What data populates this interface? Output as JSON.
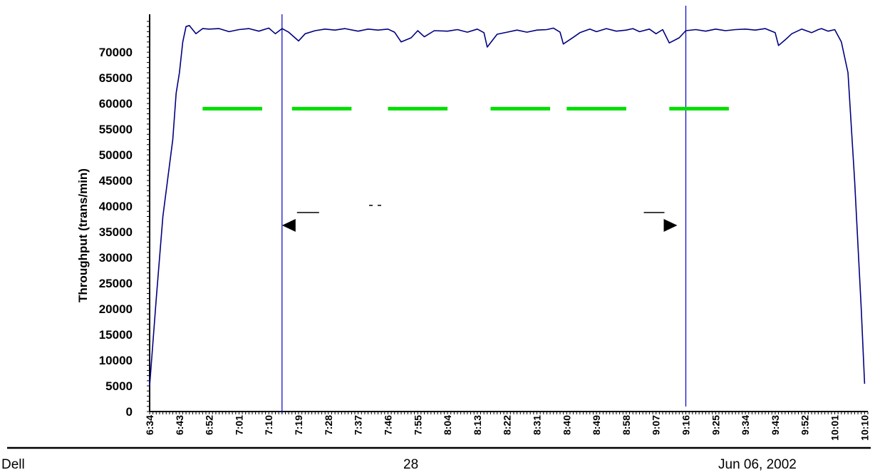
{
  "chart_data": {
    "type": "line",
    "ylabel": "Throughput (trans/min)",
    "xlabel": "",
    "ylim": [
      0,
      76000
    ],
    "yticks": [
      0,
      5000,
      10000,
      15000,
      20000,
      25000,
      30000,
      35000,
      40000,
      45000,
      50000,
      55000,
      60000,
      65000,
      70000
    ],
    "xrange": [
      "6:34",
      "10:11"
    ],
    "xticks": [
      "6:34",
      "6:43",
      "6:52",
      "7:01",
      "7:10",
      "7:19",
      "7:28",
      "7:37",
      "7:46",
      "7:55",
      "8:04",
      "8:13",
      "8:22",
      "8:31",
      "8:40",
      "8:49",
      "8:58",
      "9:07",
      "9:16",
      "9:25",
      "9:34",
      "9:43",
      "9:52",
      "10:01",
      "10:10"
    ],
    "grid": false,
    "legend": "none",
    "series": [
      {
        "color": "#000080",
        "points": [
          [
            "6:34",
            5000
          ],
          [
            "6:36",
            22000
          ],
          [
            "6:38",
            38000
          ],
          [
            "6:41",
            53000
          ],
          [
            "6:42",
            62000
          ],
          [
            "6:43",
            66000
          ],
          [
            "6:44",
            72000
          ],
          [
            "6:45",
            75000
          ],
          [
            "6:46",
            75200
          ],
          [
            "6:48",
            73600
          ],
          [
            "6:50",
            74600
          ],
          [
            "6:52",
            74500
          ],
          [
            "6:55",
            74600
          ],
          [
            "6:58",
            74000
          ],
          [
            "7:01",
            74400
          ],
          [
            "7:04",
            74600
          ],
          [
            "7:07",
            74100
          ],
          [
            "7:10",
            74700
          ],
          [
            "7:12",
            73600
          ],
          [
            "7:14",
            74600
          ],
          [
            "7:16",
            73900
          ],
          [
            "7:19",
            72200
          ],
          [
            "7:21",
            73600
          ],
          [
            "7:24",
            74200
          ],
          [
            "7:27",
            74500
          ],
          [
            "7:30",
            74300
          ],
          [
            "7:33",
            74600
          ],
          [
            "7:37",
            74100
          ],
          [
            "7:40",
            74500
          ],
          [
            "7:43",
            74300
          ],
          [
            "7:46",
            74500
          ],
          [
            "7:48",
            73900
          ],
          [
            "7:50",
            72000
          ],
          [
            "7:53",
            72800
          ],
          [
            "7:55",
            74200
          ],
          [
            "7:57",
            73000
          ],
          [
            "8:00",
            74200
          ],
          [
            "8:04",
            74100
          ],
          [
            "8:07",
            74400
          ],
          [
            "8:10",
            73900
          ],
          [
            "8:13",
            74500
          ],
          [
            "8:15",
            73800
          ],
          [
            "8:16",
            71000
          ],
          [
            "8:19",
            73500
          ],
          [
            "8:22",
            73900
          ],
          [
            "8:25",
            74300
          ],
          [
            "8:28",
            73900
          ],
          [
            "8:31",
            74300
          ],
          [
            "8:34",
            74400
          ],
          [
            "8:36",
            74700
          ],
          [
            "8:38",
            73900
          ],
          [
            "8:39",
            71600
          ],
          [
            "8:42",
            72900
          ],
          [
            "8:44",
            73800
          ],
          [
            "8:47",
            74500
          ],
          [
            "8:49",
            74000
          ],
          [
            "8:52",
            74600
          ],
          [
            "8:55",
            74100
          ],
          [
            "8:58",
            74300
          ],
          [
            "9:00",
            74600
          ],
          [
            "9:02",
            74000
          ],
          [
            "9:05",
            74500
          ],
          [
            "9:07",
            73600
          ],
          [
            "9:09",
            74400
          ],
          [
            "9:11",
            71800
          ],
          [
            "9:14",
            72800
          ],
          [
            "9:16",
            74200
          ],
          [
            "9:19",
            74400
          ],
          [
            "9:22",
            74100
          ],
          [
            "9:25",
            74500
          ],
          [
            "9:28",
            74200
          ],
          [
            "9:31",
            74400
          ],
          [
            "9:34",
            74500
          ],
          [
            "9:37",
            74300
          ],
          [
            "9:40",
            74600
          ],
          [
            "9:43",
            73800
          ],
          [
            "9:44",
            71300
          ],
          [
            "9:46",
            72400
          ],
          [
            "9:48",
            73600
          ],
          [
            "9:51",
            74500
          ],
          [
            "9:54",
            73800
          ],
          [
            "9:56",
            74400
          ],
          [
            "9:57",
            74600
          ],
          [
            "9:59",
            74100
          ],
          [
            "10:01",
            74400
          ],
          [
            "10:03",
            72000
          ],
          [
            "10:05",
            66000
          ],
          [
            "10:07",
            45000
          ],
          [
            "10:09",
            20000
          ],
          [
            "10:10",
            5400
          ]
        ]
      }
    ],
    "segments": [
      {
        "color": "#00e000",
        "start": "6:50",
        "end": "7:08",
        "y": 59000
      },
      {
        "color": "#00e000",
        "start": "7:17",
        "end": "7:35",
        "y": 59000
      },
      {
        "color": "#00e000",
        "start": "7:46",
        "end": "8:04",
        "y": 59000
      },
      {
        "color": "#00e000",
        "start": "8:17",
        "end": "8:35",
        "y": 59000
      },
      {
        "color": "#00e000",
        "start": "8:40",
        "end": "8:58",
        "y": 59000
      },
      {
        "color": "#00e000",
        "start": "9:11",
        "end": "9:29",
        "y": 59000
      }
    ],
    "measurement_interval": {
      "start": "7:14",
      "end": "9:16",
      "color": "#0000c0"
    }
  },
  "footer": {
    "left": "Dell",
    "center": "28",
    "right": "Jun 06, 2002"
  }
}
